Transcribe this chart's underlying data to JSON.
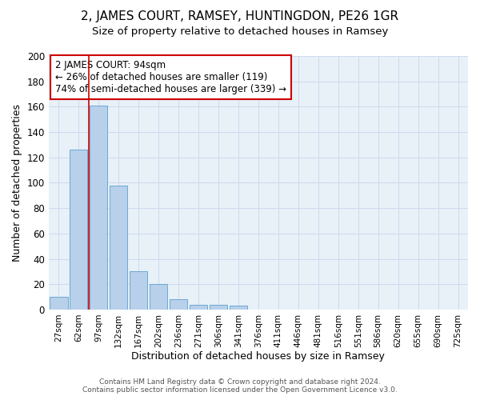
{
  "title": "2, JAMES COURT, RAMSEY, HUNTINGDON, PE26 1GR",
  "subtitle": "Size of property relative to detached houses in Ramsey",
  "xlabel": "Distribution of detached houses by size in Ramsey",
  "ylabel": "Number of detached properties",
  "footer_line1": "Contains HM Land Registry data © Crown copyright and database right 2024.",
  "footer_line2": "Contains public sector information licensed under the Open Government Licence v3.0.",
  "bar_labels": [
    "27sqm",
    "62sqm",
    "97sqm",
    "132sqm",
    "167sqm",
    "202sqm",
    "236sqm",
    "271sqm",
    "306sqm",
    "341sqm",
    "376sqm",
    "411sqm",
    "446sqm",
    "481sqm",
    "516sqm",
    "551sqm",
    "586sqm",
    "620sqm",
    "655sqm",
    "690sqm",
    "725sqm"
  ],
  "bar_values": [
    10,
    126,
    161,
    98,
    30,
    20,
    8,
    4,
    4,
    3,
    0,
    0,
    0,
    0,
    0,
    0,
    0,
    0,
    0,
    0,
    0
  ],
  "bar_color": "#b8d0ea",
  "bar_edge_color": "#6aaad4",
  "grid_color": "#c8d8eb",
  "background_color": "#e8f0f8",
  "annotation_box_text": "2 JAMES COURT: 94sqm\n← 26% of detached houses are smaller (119)\n74% of semi-detached houses are larger (339) →",
  "annotation_box_color": "#ffffff",
  "annotation_box_edge_color": "#cc0000",
  "vertical_line_x": 1.5,
  "vertical_line_color": "#cc0000",
  "ylim": [
    0,
    200
  ],
  "yticks": [
    0,
    20,
    40,
    60,
    80,
    100,
    120,
    140,
    160,
    180,
    200
  ]
}
